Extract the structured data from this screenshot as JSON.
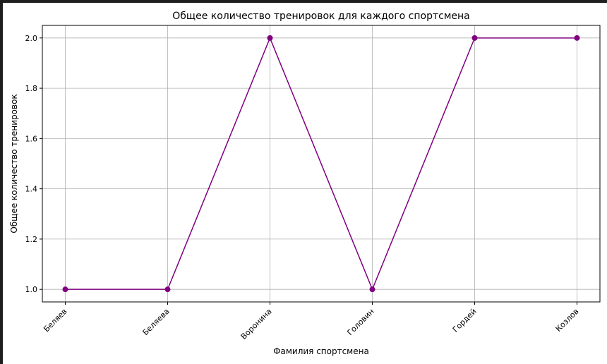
{
  "chart_data": {
    "type": "line",
    "title": "Общее количество тренировок для каждого спортсмена",
    "xlabel": "Фамилия спортсмена",
    "ylabel": "Общее количество тренировок",
    "categories": [
      "Беляев",
      "Беляева",
      "Воронина",
      "Головин",
      "Гордей",
      "Козлов"
    ],
    "series": [
      {
        "values": [
          1,
          1,
          2,
          1,
          2,
          2
        ]
      }
    ],
    "ylim": [
      0.95,
      2.05
    ],
    "yticks": [
      1.0,
      1.2,
      1.4,
      1.6,
      1.8,
      2.0
    ],
    "ytick_labels": [
      "1.0",
      "1.2",
      "1.4",
      "1.6",
      "1.8",
      "2.0"
    ],
    "grid": true,
    "marker": "circle",
    "color": "#800080"
  }
}
